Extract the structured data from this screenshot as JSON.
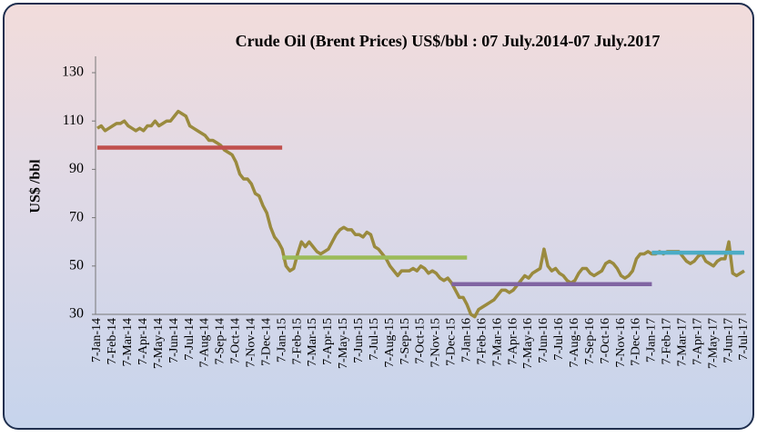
{
  "chart_data": {
    "type": "line",
    "title": "Crude Oil (Brent Prices) US$/bbl : 07 July.2014-07 July.2017",
    "y_label": "US$ /bbl",
    "ylim": [
      30,
      130
    ],
    "yticks": [
      30,
      50,
      70,
      90,
      110,
      130
    ],
    "categories": [
      "7-Jan-14",
      null,
      null,
      null,
      "7-Feb-14",
      null,
      null,
      null,
      "7-Mar-14",
      null,
      null,
      null,
      "7-Apr-14",
      null,
      null,
      null,
      "7-May-14",
      null,
      null,
      null,
      "7-Jun-14",
      null,
      null,
      null,
      "7-Jul-14",
      null,
      null,
      null,
      "7-Aug-14",
      null,
      null,
      null,
      "7-Sep-14",
      null,
      null,
      null,
      "7-Oct-14",
      null,
      null,
      null,
      "7-Nov-14",
      null,
      null,
      null,
      "7-Dec-14",
      null,
      null,
      null,
      "7-Jan-15",
      null,
      null,
      null,
      "7-Feb-15",
      null,
      null,
      null,
      "7-Mar-15",
      null,
      null,
      null,
      "7-Apr-15",
      null,
      null,
      null,
      "7-May-15",
      null,
      null,
      null,
      "7-Jun-15",
      null,
      null,
      null,
      "7-Jul-15",
      null,
      null,
      null,
      "7-Aug-15",
      null,
      null,
      null,
      "7-Sep-15",
      null,
      null,
      null,
      "7-Oct-15",
      null,
      null,
      null,
      "7-Nov-15",
      null,
      null,
      null,
      "7-Dec-15",
      null,
      null,
      null,
      "7-Jan-16",
      null,
      null,
      null,
      "7-Feb-16",
      null,
      null,
      null,
      "7-Mar-16",
      null,
      null,
      null,
      "7-Apr-16",
      null,
      null,
      null,
      "7-May-16",
      null,
      null,
      null,
      "7-Jun-16",
      null,
      null,
      null,
      "7-Jul-16",
      null,
      null,
      null,
      "7-Aug-16",
      null,
      null,
      null,
      "7-Sep-16",
      null,
      null,
      null,
      "7-Oct-16",
      null,
      null,
      null,
      "7-Nov-16",
      null,
      null,
      null,
      "7-Dec-16",
      null,
      null,
      null,
      "7-Jan-17",
      null,
      null,
      null,
      "7-Feb-17",
      null,
      null,
      null,
      "7-Mar-17",
      null,
      null,
      null,
      "7-Apr-17",
      null,
      null,
      null,
      "7-May-17",
      null,
      null,
      null,
      "7-Jun-17",
      null,
      null,
      null,
      "7-Jul-17"
    ],
    "series": [
      {
        "color": "#9a8a3e",
        "values": [
          107,
          108,
          106,
          107,
          108,
          109,
          109,
          110,
          108,
          107,
          106,
          107,
          106,
          108,
          108,
          110,
          108,
          109,
          110,
          110,
          112,
          114,
          113,
          112,
          108,
          107,
          106,
          105,
          104,
          102,
          102,
          101,
          100,
          98,
          97,
          96,
          93,
          88,
          86,
          86,
          84,
          80,
          79,
          75,
          72,
          66,
          62,
          60,
          57,
          50,
          48,
          49,
          55,
          60,
          58,
          60,
          58,
          56,
          55,
          56,
          57,
          60,
          63,
          65,
          66,
          65,
          65,
          63,
          63,
          62,
          64,
          63,
          58,
          57,
          55,
          53,
          50,
          48,
          46,
          48,
          48,
          48,
          49,
          48,
          50,
          49,
          47,
          48,
          47,
          45,
          44,
          45,
          43,
          40,
          37,
          37,
          34,
          30,
          29,
          32,
          33,
          34,
          35,
          36,
          38,
          40,
          40,
          39,
          40,
          42,
          44,
          46,
          45,
          47,
          48,
          49,
          57,
          50,
          48,
          49,
          47,
          46,
          44,
          43,
          44,
          47,
          49,
          49,
          47,
          46,
          47,
          48,
          51,
          52,
          51,
          49,
          46,
          45,
          46,
          48,
          53,
          55,
          55,
          56,
          55,
          55,
          56,
          55,
          56,
          56,
          56,
          56,
          54,
          52,
          51,
          52,
          54,
          55,
          52,
          51,
          50,
          52,
          53,
          53,
          60,
          47,
          46,
          47,
          48
        ]
      }
    ],
    "reference_lines": [
      {
        "value": 99,
        "color": "#c0504d",
        "from": "7-Jan-14",
        "to": "7-Jan-15"
      },
      {
        "value": 53.5,
        "color": "#9bbb59",
        "from": "7-Jan-15",
        "to": "7-Jan-16"
      },
      {
        "value": 42.5,
        "color": "#8064a2",
        "from": "7-Dec-15",
        "to": "7-Jan-17"
      },
      {
        "value": 55.5,
        "color": "#4bacc6",
        "from": "7-Jan-17",
        "to": "7-Jul-17"
      }
    ]
  }
}
